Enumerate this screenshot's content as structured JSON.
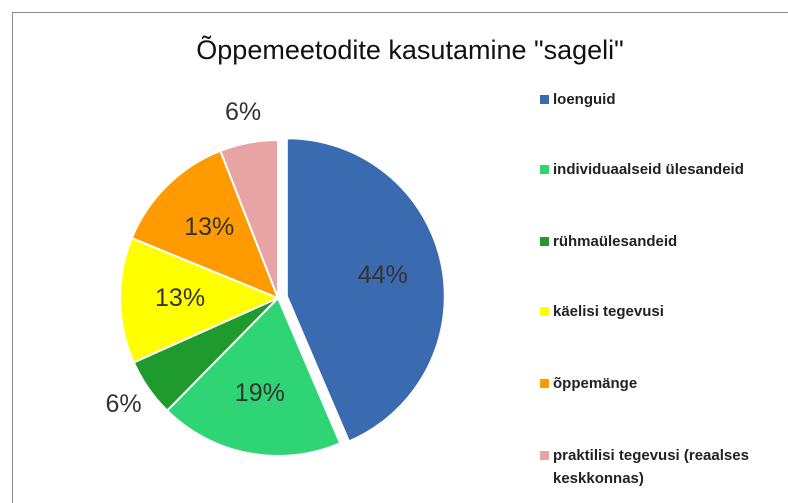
{
  "chart_data": {
    "type": "pie",
    "title": "Õppemeetodite kasutamine \"sageli\"",
    "categories": [
      "loenguid",
      "individuaalseid ülesandeid",
      "rühmaülesandeid",
      "käelisi tegevusi",
      "õppemänge",
      "praktilisi tegevusi (reaalses keskkonnas)"
    ],
    "values": [
      44,
      19,
      6,
      13,
      13,
      6
    ],
    "value_labels": [
      "44%",
      "19%",
      "6%",
      "13%",
      "13%",
      "6%"
    ],
    "colors": [
      "#3a6ab0",
      "#2fd474",
      "#1f9a2c",
      "#ffff00",
      "#ff9a00",
      "#e8a3a3"
    ],
    "legend": "right"
  }
}
